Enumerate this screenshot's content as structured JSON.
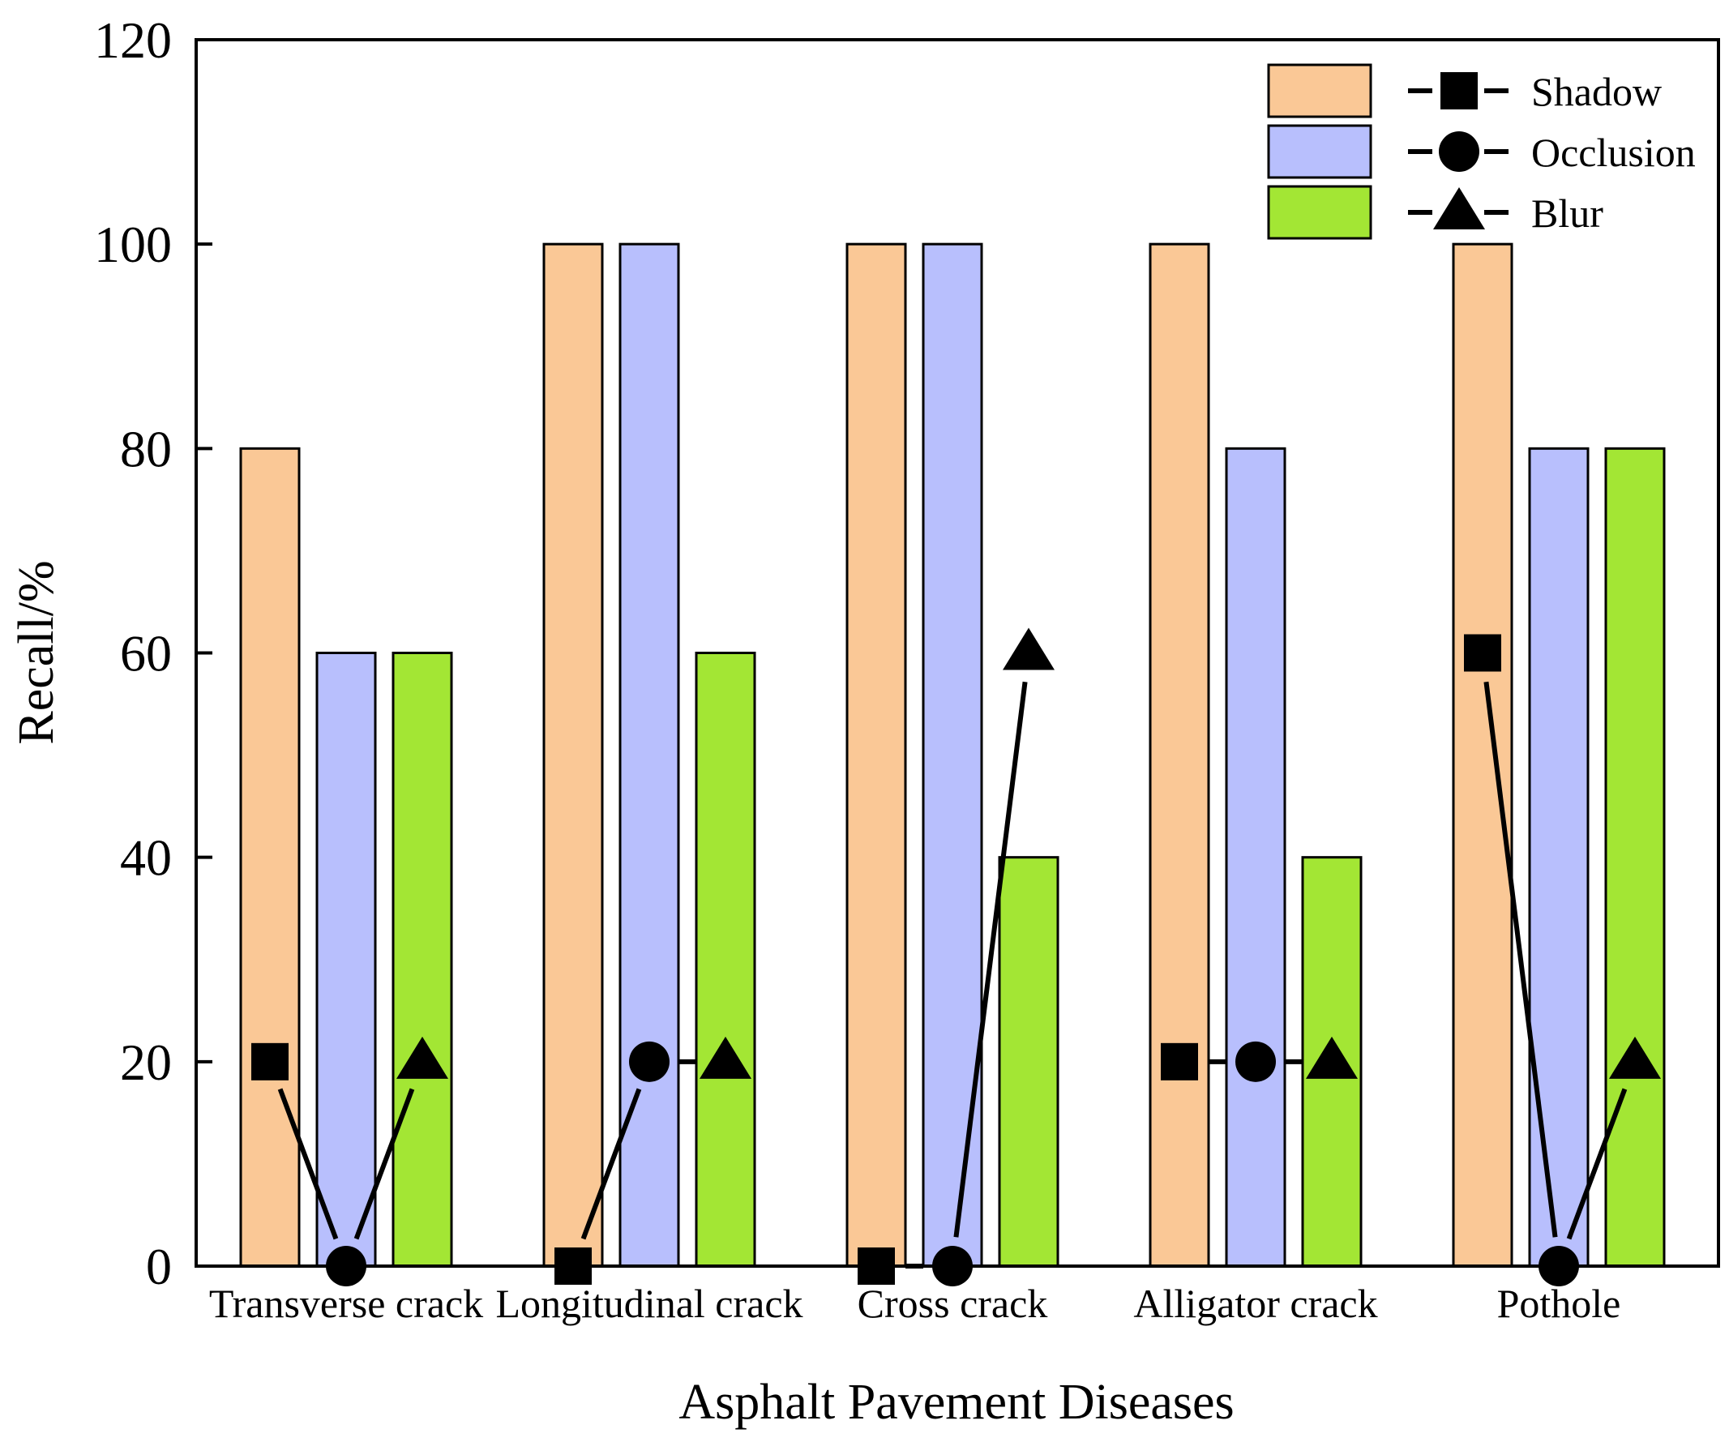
{
  "chart_data": {
    "type": "bar",
    "xlabel": "Asphalt Pavement Diseases",
    "ylabel": "Recall/%",
    "ylim": [
      0,
      120
    ],
    "yticks": [
      0,
      20,
      40,
      60,
      80,
      100,
      120
    ],
    "grid": false,
    "legend_position": "top-right",
    "categories": [
      "Transverse crack",
      "Longitudinal crack",
      "Cross crack",
      "Alligator crack",
      "Pothole"
    ],
    "bar_series": [
      {
        "color": "#fac896",
        "values": [
          80,
          100,
          100,
          100,
          100
        ]
      },
      {
        "color": "#b8bffd",
        "values": [
          60,
          100,
          100,
          80,
          80
        ]
      },
      {
        "color": "#a3e634",
        "values": [
          60,
          60,
          40,
          40,
          80
        ]
      }
    ],
    "line_series": [
      {
        "name": "Shadow",
        "marker": "square",
        "values": [
          20,
          0,
          0,
          20,
          60
        ]
      },
      {
        "name": "Occlusion",
        "marker": "circle",
        "values": [
          0,
          20,
          0,
          20,
          0
        ]
      },
      {
        "name": "Blur",
        "marker": "triangle",
        "values": [
          20,
          20,
          60,
          20,
          20
        ]
      }
    ]
  }
}
